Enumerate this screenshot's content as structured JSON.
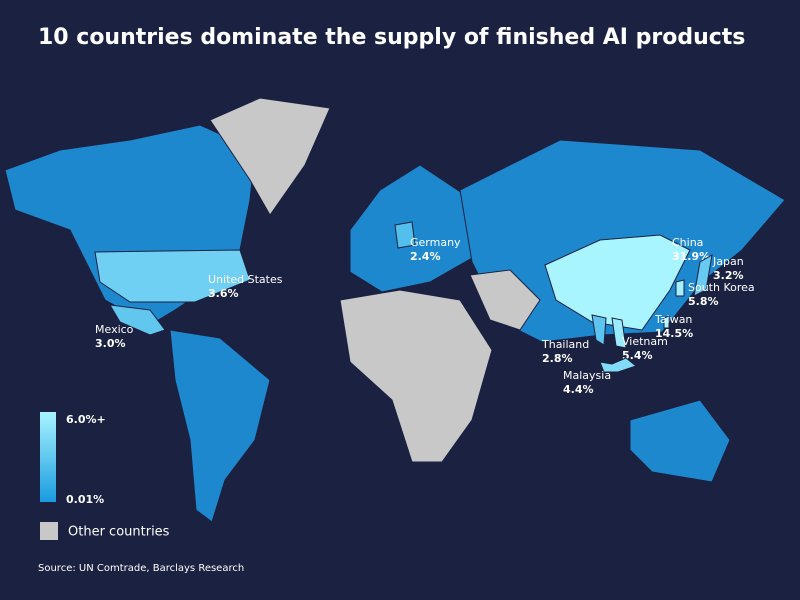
{
  "title": "10 countries dominate the supply of finished AI products",
  "countries": [
    {
      "name": "United States",
      "value": 3.6,
      "value_label": "3.6%"
    },
    {
      "name": "Mexico",
      "value": 3.0,
      "value_label": "3.0%"
    },
    {
      "name": "Germany",
      "value": 2.4,
      "value_label": "2.4%"
    },
    {
      "name": "China",
      "value": 31.9,
      "value_label": "31.9%"
    },
    {
      "name": "Japan",
      "value": 3.2,
      "value_label": "3.2%"
    },
    {
      "name": "South Korea",
      "value": 5.8,
      "value_label": "5.8%"
    },
    {
      "name": "Taiwan",
      "value": 14.5,
      "value_label": "14.5%"
    },
    {
      "name": "Vietnam",
      "value": 5.4,
      "value_label": "5.4%"
    },
    {
      "name": "Thailand",
      "value": 2.8,
      "value_label": "2.8%"
    },
    {
      "name": "Malaysia",
      "value": 4.4,
      "value_label": "4.4%"
    }
  ],
  "legend": {
    "max": 6.0,
    "max_label": "6.0%+",
    "min": 0.01,
    "min_label": "0.01%",
    "max_color": "#a8f4ff",
    "min_color": "#1a9be0",
    "other_label": "Other countries",
    "other_color": "#c8c8c8"
  },
  "source": "Source: UN Comtrade, Barclays Research"
}
